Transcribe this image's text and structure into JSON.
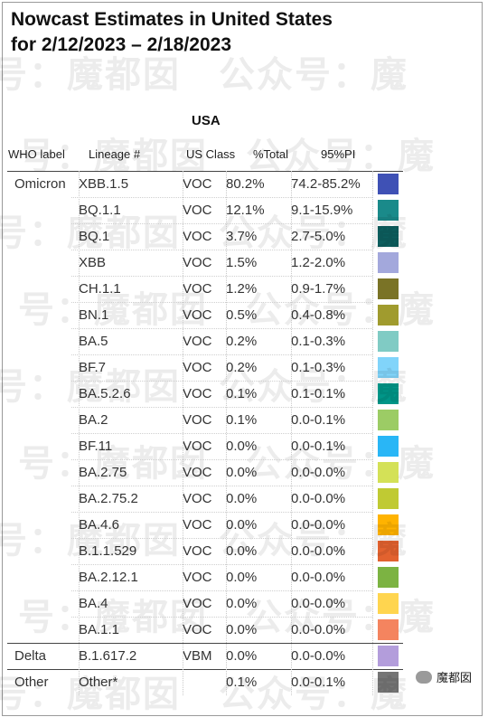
{
  "title": "Nowcast Estimates in United States\nfor 2/12/2023 – 2/18/2023",
  "region_label": "USA",
  "headers": {
    "who_label": "WHO label",
    "lineage": "Lineage #",
    "us_class": "US Class",
    "pct_total": "%Total",
    "pi": "95%PI"
  },
  "rows": [
    {
      "who": "Omicron",
      "lineage": "XBB.1.5",
      "class": "VOC",
      "total": "80.2%",
      "pi": "74.2-85.2%",
      "color": "#3F51B5"
    },
    {
      "who": "",
      "lineage": "BQ.1.1",
      "class": "VOC",
      "total": "12.1%",
      "pi": "9.1-15.9%",
      "color": "#1A8A8A"
    },
    {
      "who": "",
      "lineage": "BQ.1",
      "class": "VOC",
      "total": "3.7%",
      "pi": "2.7-5.0%",
      "color": "#0D5E5E"
    },
    {
      "who": "",
      "lineage": "XBB",
      "class": "VOC",
      "total": "1.5%",
      "pi": "1.2-2.0%",
      "color": "#A3A8DC"
    },
    {
      "who": "",
      "lineage": "CH.1.1",
      "class": "VOC",
      "total": "1.2%",
      "pi": "0.9-1.7%",
      "color": "#7A7326"
    },
    {
      "who": "",
      "lineage": "BN.1",
      "class": "VOC",
      "total": "0.5%",
      "pi": "0.4-0.8%",
      "color": "#A09B2E"
    },
    {
      "who": "",
      "lineage": "BA.5",
      "class": "VOC",
      "total": "0.2%",
      "pi": "0.1-0.3%",
      "color": "#80CBC4"
    },
    {
      "who": "",
      "lineage": "BF.7",
      "class": "VOC",
      "total": "0.2%",
      "pi": "0.1-0.3%",
      "color": "#81D4FA"
    },
    {
      "who": "",
      "lineage": "BA.5.2.6",
      "class": "VOC",
      "total": "0.1%",
      "pi": "0.1-0.1%",
      "color": "#009688"
    },
    {
      "who": "",
      "lineage": "BA.2",
      "class": "VOC",
      "total": "0.1%",
      "pi": "0.0-0.1%",
      "color": "#9CCC65"
    },
    {
      "who": "",
      "lineage": "BF.11",
      "class": "VOC",
      "total": "0.0%",
      "pi": "0.0-0.1%",
      "color": "#29B6F6"
    },
    {
      "who": "",
      "lineage": "BA.2.75",
      "class": "VOC",
      "total": "0.0%",
      "pi": "0.0-0.0%",
      "color": "#D4E157"
    },
    {
      "who": "",
      "lineage": "BA.2.75.2",
      "class": "VOC",
      "total": "0.0%",
      "pi": "0.0-0.0%",
      "color": "#C0CA33"
    },
    {
      "who": "",
      "lineage": "BA.4.6",
      "class": "VOC",
      "total": "0.0%",
      "pi": "0.0-0.0%",
      "color": "#FFB300"
    },
    {
      "who": "",
      "lineage": "B.1.1.529",
      "class": "VOC",
      "total": "0.0%",
      "pi": "0.0-0.0%",
      "color": "#E2622F"
    },
    {
      "who": "",
      "lineage": "BA.2.12.1",
      "class": "VOC",
      "total": "0.0%",
      "pi": "0.0-0.0%",
      "color": "#7CB342"
    },
    {
      "who": "",
      "lineage": "BA.4",
      "class": "VOC",
      "total": "0.0%",
      "pi": "0.0-0.0%",
      "color": "#FFD54F"
    },
    {
      "who": "",
      "lineage": "BA.1.1",
      "class": "VOC",
      "total": "0.0%",
      "pi": "0.0-0.0%",
      "color": "#F4845F"
    },
    {
      "who": "Delta",
      "lineage": "B.1.617.2",
      "class": "VBM",
      "total": "0.0%",
      "pi": "0.0-0.0%",
      "color": "#B39DDB"
    },
    {
      "who": "Other",
      "lineage": "Other*",
      "class": "",
      "total": "0.1%",
      "pi": "0.0-0.1%",
      "color": "#757575"
    }
  ],
  "watermark": "号：魔都囡　公众号：魔",
  "badge_text": "魔都囡"
}
